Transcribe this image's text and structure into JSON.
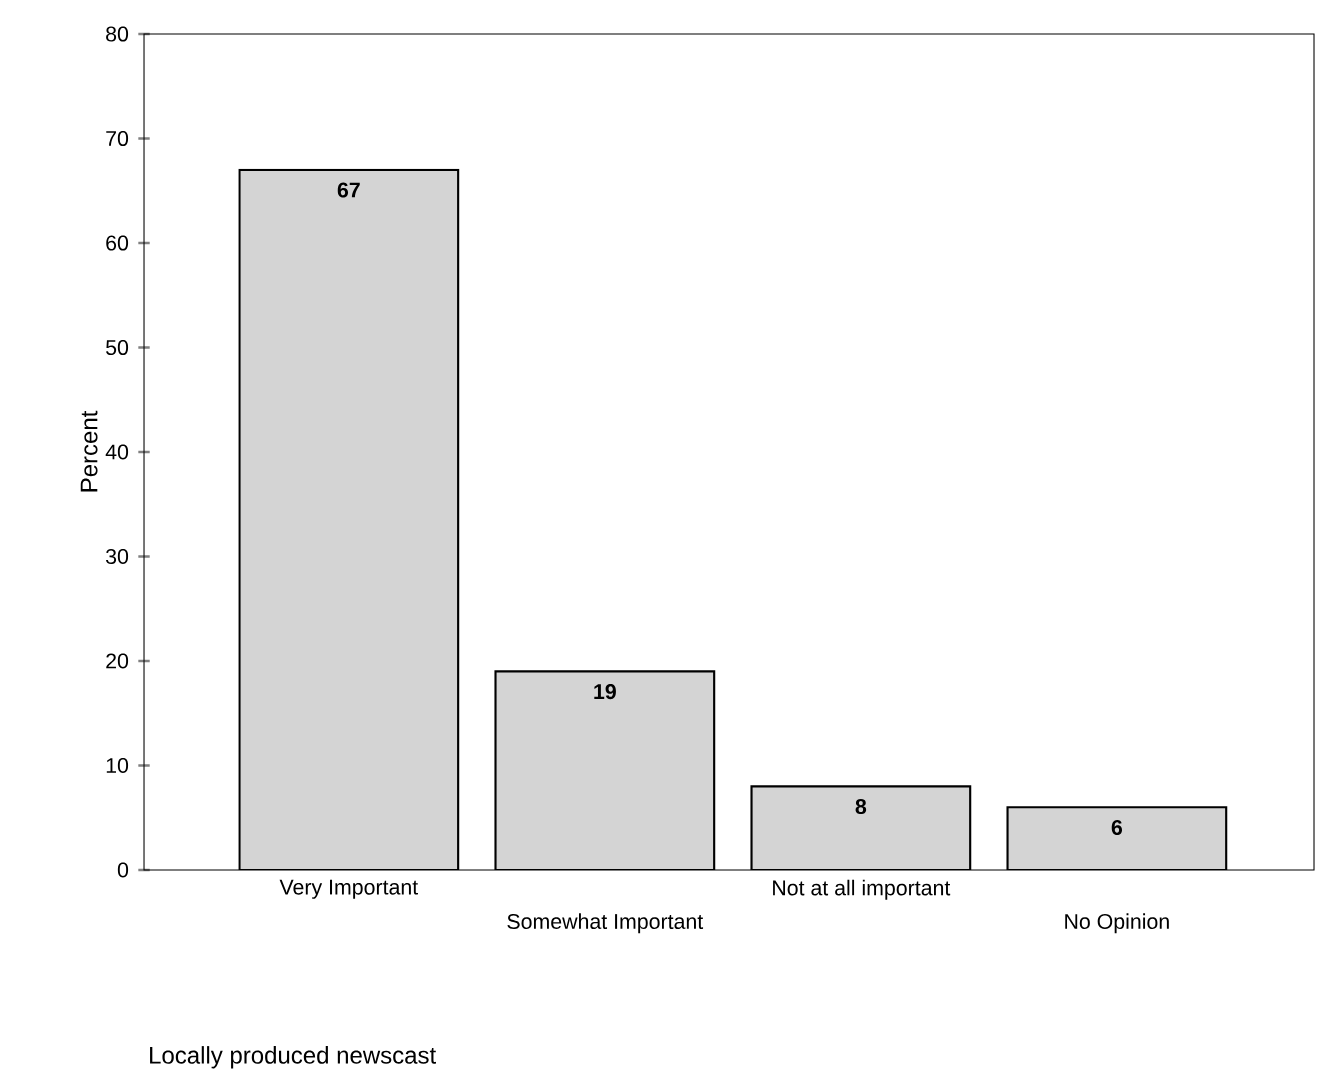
{
  "chart_data": {
    "type": "bar",
    "categories": [
      "Very Important",
      "Somewhat Important",
      "Not at all important",
      "No Opinion"
    ],
    "values": [
      67,
      19,
      8,
      6
    ],
    "color": "#d4d4d4",
    "data_labels": true,
    "ylabel": "Percent",
    "annotations": [
      "Locally produced newscast"
    ],
    "ylim": [
      0,
      80
    ],
    "yticks": [
      0,
      10,
      20,
      30,
      40,
      50,
      60,
      70,
      80
    ],
    "grid": false
  }
}
